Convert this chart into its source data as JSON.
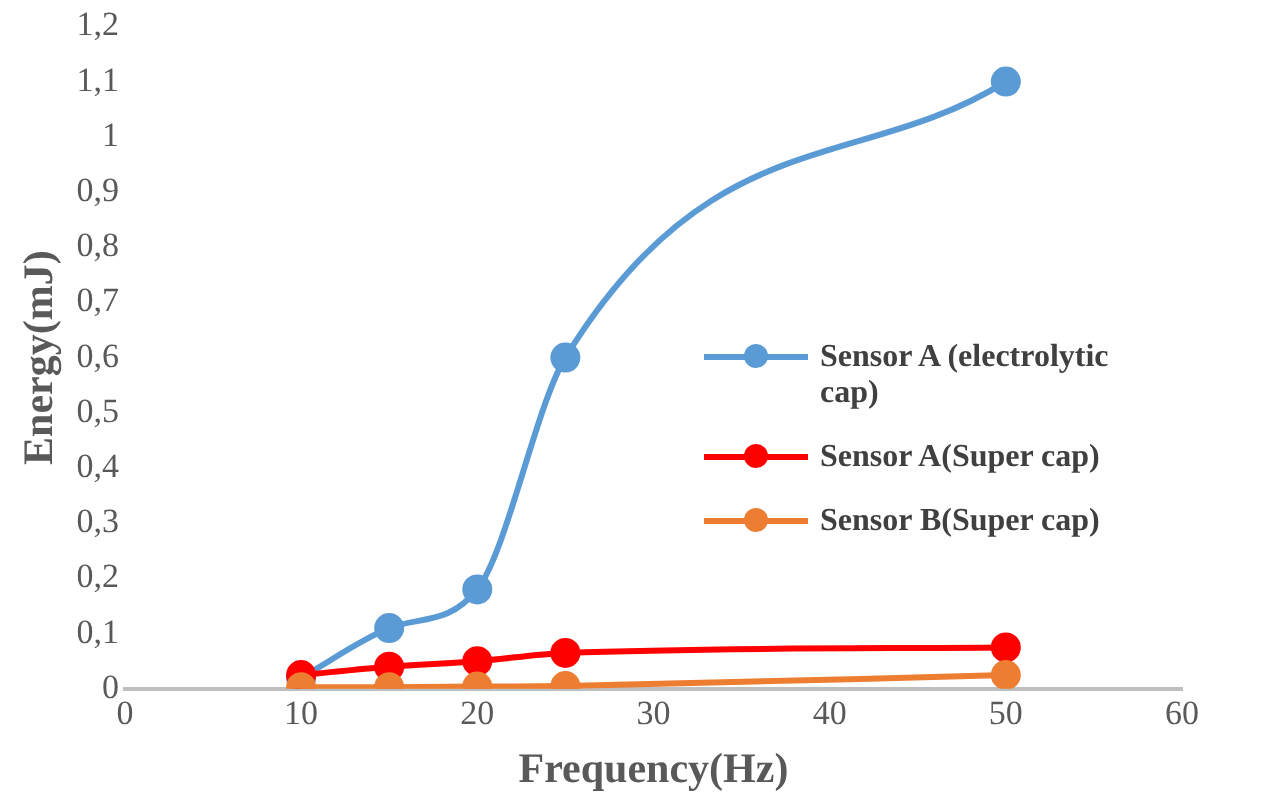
{
  "chart_data": {
    "type": "line",
    "xlabel": "Frequency(Hz)",
    "ylabel": "Energy(mJ)",
    "x": [
      10,
      15,
      20,
      25,
      50
    ],
    "series": [
      {
        "name": "Sensor A (electrolytic cap)",
        "color": "#5b9bd5",
        "values": [
          0.02,
          0.11,
          0.18,
          0.6,
          1.1
        ]
      },
      {
        "name": "Sensor A(Super cap)",
        "color": "#ff0000",
        "values": [
          0.025,
          0.04,
          0.05,
          0.065,
          0.075
        ]
      },
      {
        "name": "Sensor B(Super cap)",
        "color": "#ed7d31",
        "values": [
          0.003,
          0.003,
          0.004,
          0.005,
          0.025
        ]
      }
    ],
    "xlim": [
      0,
      60
    ],
    "xticks": [
      0,
      10,
      20,
      30,
      40,
      50,
      60
    ],
    "ylim": [
      0,
      1.2
    ],
    "yticks": [
      0,
      {
        "value": 0.1,
        "label": "0,1"
      },
      {
        "value": 0.2,
        "label": "0,2"
      },
      {
        "value": 0.3,
        "label": "0,3"
      },
      {
        "value": 0.4,
        "label": "0,4"
      },
      {
        "value": 0.5,
        "label": "0,5"
      },
      {
        "value": 0.6,
        "label": "0,6"
      },
      {
        "value": 0.7,
        "label": "0,7"
      },
      {
        "value": 0.8,
        "label": "0,8"
      },
      {
        "value": 0.9,
        "label": "0,9"
      },
      1,
      {
        "value": 1.1,
        "label": "1,1"
      },
      {
        "value": 1.2,
        "label": "1,2"
      }
    ],
    "grid": false,
    "legend": "right",
    "marker": "circle",
    "line_style": "solid"
  }
}
